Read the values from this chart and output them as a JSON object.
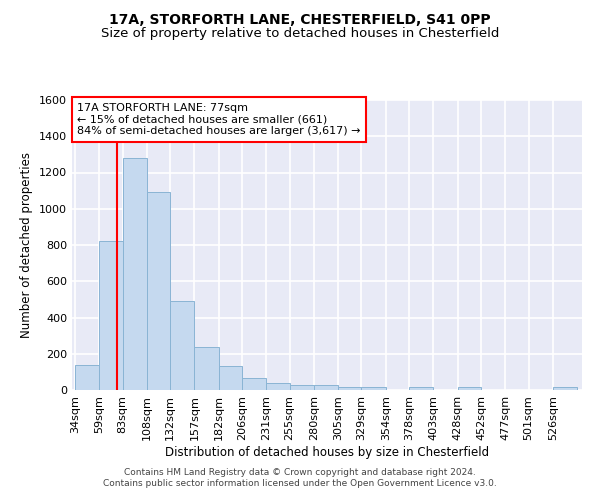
{
  "title1": "17A, STORFORTH LANE, CHESTERFIELD, S41 0PP",
  "title2": "Size of property relative to detached houses in Chesterfield",
  "xlabel": "Distribution of detached houses by size in Chesterfield",
  "ylabel": "Number of detached properties",
  "footer1": "Contains HM Land Registry data © Crown copyright and database right 2024.",
  "footer2": "Contains public sector information licensed under the Open Government Licence v3.0.",
  "annotation_line1": "17A STORFORTH LANE: 77sqm",
  "annotation_line2": "← 15% of detached houses are smaller (661)",
  "annotation_line3": "84% of semi-detached houses are larger (3,617) →",
  "bar_color": "#c5d9ef",
  "bar_edge_color": "#8ab4d4",
  "red_line_x": 77,
  "categories": [
    "34sqm",
    "59sqm",
    "83sqm",
    "108sqm",
    "132sqm",
    "157sqm",
    "182sqm",
    "206sqm",
    "231sqm",
    "255sqm",
    "280sqm",
    "305sqm",
    "329sqm",
    "354sqm",
    "378sqm",
    "403sqm",
    "428sqm",
    "452sqm",
    "477sqm",
    "501sqm",
    "526sqm"
  ],
  "bin_edges": [
    34,
    59,
    83,
    108,
    132,
    157,
    182,
    206,
    231,
    255,
    280,
    305,
    329,
    354,
    378,
    403,
    428,
    452,
    477,
    501,
    526,
    551
  ],
  "values": [
    140,
    820,
    1280,
    1090,
    490,
    235,
    130,
    65,
    40,
    30,
    25,
    15,
    15,
    0,
    15,
    0,
    15,
    0,
    0,
    0,
    15
  ],
  "ylim": [
    0,
    1600
  ],
  "yticks": [
    0,
    200,
    400,
    600,
    800,
    1000,
    1200,
    1400,
    1600
  ],
  "background_color": "#e8eaf6",
  "grid_color": "#ffffff",
  "title_fontsize": 10,
  "subtitle_fontsize": 9.5,
  "axis_fontsize": 8.5,
  "tick_fontsize": 8,
  "footer_fontsize": 6.5,
  "annotation_fontsize": 8
}
